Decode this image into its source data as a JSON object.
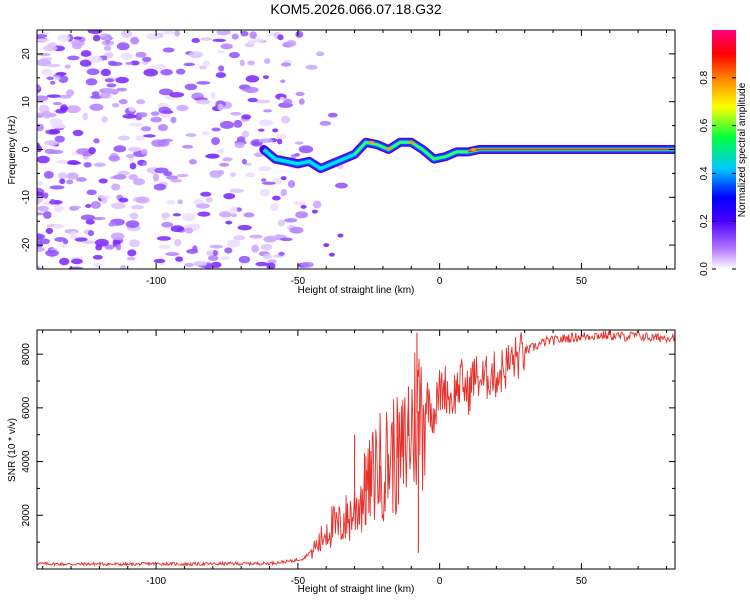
{
  "title": "KOM5.2026.066.07.18.G32",
  "chart_data": [
    {
      "type": "heatmap",
      "name": "spectrogram",
      "xlabel": "Height of straight line (km)",
      "ylabel": "Frequency (Hz)",
      "xlim": [
        -142,
        83
      ],
      "ylim": [
        -25,
        25
      ],
      "xticks": [
        -100,
        -50,
        0,
        50
      ],
      "xtick_labels": [
        "-100",
        "-50",
        "0",
        "50"
      ],
      "yticks": [
        -20,
        -10,
        0,
        10,
        20
      ],
      "ytick_labels": [
        "-20",
        "-10",
        "0",
        "10",
        "20"
      ],
      "ridge": {
        "x": [
          -62,
          -58,
          -54,
          -50,
          -46,
          -42,
          -38,
          -34,
          -30,
          -26,
          -22,
          -18,
          -14,
          -10,
          -6,
          -2,
          2,
          6,
          10,
          14,
          18,
          22,
          26,
          30,
          40,
          50,
          60,
          70,
          83
        ],
        "freq": [
          0,
          -2,
          -2.5,
          -3,
          -2.5,
          -4,
          -3,
          -2,
          -1,
          1.5,
          1,
          0,
          1.5,
          1.5,
          0,
          -2,
          -1.5,
          -0.5,
          -0.5,
          0,
          0,
          0,
          0,
          0,
          0,
          0,
          0,
          0,
          0
        ]
      },
      "colorbar": {
        "label": "Normalized spectral amplitude",
        "range": [
          0,
          1
        ],
        "ticks": [
          0,
          0.2,
          0.4,
          0.6,
          0.8
        ],
        "tick_labels": [
          "0.0",
          "0.2",
          "0.4",
          "0.6",
          "0.8"
        ],
        "colormap": [
          "#ffffff",
          "#7c00ff",
          "#0000ff",
          "#00c0ff",
          "#00ff00",
          "#ffff00",
          "#ff8000",
          "#ff0000",
          "#ff0080"
        ]
      }
    },
    {
      "type": "line",
      "name": "snr",
      "xlabel": "Height of straight line (km)",
      "ylabel": "SNR (10 * v/v)",
      "xlim": [
        -142,
        83
      ],
      "ylim": [
        0,
        8900
      ],
      "xticks": [
        -100,
        -50,
        0,
        50
      ],
      "xtick_labels": [
        "-100",
        "-50",
        "0",
        "50"
      ],
      "yticks": [
        2000,
        4000,
        6000,
        8000
      ],
      "ytick_labels": [
        "2000",
        "4000",
        "6000",
        "8000"
      ],
      "color": "#e8302a",
      "series": [
        {
          "name": "SNR",
          "x": [
            -142,
            -130,
            -120,
            -110,
            -100,
            -90,
            -80,
            -70,
            -60,
            -52,
            -48,
            -45,
            -42,
            -40,
            -38,
            -36,
            -34,
            -32,
            -30,
            -28,
            -26,
            -24,
            -22,
            -20,
            -18,
            -16,
            -14,
            -12,
            -10,
            -8,
            -6,
            -4,
            -2,
            0,
            2,
            4,
            6,
            8,
            10,
            12,
            14,
            16,
            18,
            20,
            22,
            24,
            26,
            28,
            30,
            32,
            34,
            36,
            38,
            40,
            45,
            50,
            55,
            60,
            65,
            70,
            75,
            83
          ],
          "y": [
            200,
            180,
            190,
            170,
            200,
            180,
            190,
            200,
            210,
            300,
            400,
            700,
            1000,
            1500,
            1600,
            1500,
            1800,
            1900,
            2200,
            2600,
            2900,
            3300,
            3900,
            3800,
            4100,
            4300,
            4000,
            4600,
            5300,
            5800,
            6100,
            6300,
            5800,
            6600,
            6800,
            6300,
            6700,
            7000,
            6500,
            7200,
            7100,
            7000,
            7300,
            7200,
            7400,
            7600,
            7800,
            7900,
            8100,
            8200,
            8300,
            8400,
            8500,
            8500,
            8600,
            8650,
            8700,
            8700,
            8650,
            8700,
            8600,
            8650
          ]
        }
      ],
      "spikes": {
        "x": [
          -34,
          -30,
          -26,
          -21,
          -15,
          -11,
          -8,
          -7.5
        ],
        "y": [
          1800,
          5000,
          4200,
          2500,
          4900,
          6800,
          8800,
          600
        ]
      }
    }
  ]
}
